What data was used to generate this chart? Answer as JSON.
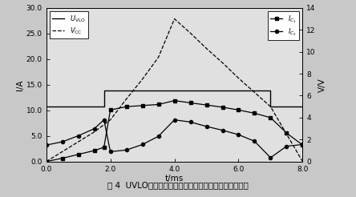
{
  "xlabel": "t/ms",
  "ylabel_left": "I/A",
  "ylabel_right": "V/V",
  "caption": "图 4  UVLO随及晶体管集电极电流随电源电压变化关系图",
  "xlim": [
    0.0,
    8.0
  ],
  "ylim_left": [
    0.0,
    30.0
  ],
  "ylim_right": [
    0,
    14
  ],
  "xticks": [
    0.0,
    2.0,
    4.0,
    6.0,
    8.0
  ],
  "yticks_left": [
    0.0,
    5.0,
    10.0,
    15.0,
    20.0,
    25.0,
    30.0
  ],
  "yticks_right": [
    0,
    2,
    4,
    6,
    8,
    10,
    12,
    14
  ],
  "uvlo_x": [
    0.0,
    1.8,
    1.8,
    7.0,
    7.0,
    8.0
  ],
  "uvlo_y": [
    5.0,
    5.0,
    6.5,
    6.5,
    5.0,
    5.0
  ],
  "vcc_x": [
    0.0,
    0.5,
    1.0,
    1.5,
    2.0,
    2.5,
    3.0,
    3.5,
    4.0,
    4.5,
    5.0,
    5.5,
    6.0,
    6.5,
    7.0,
    7.5,
    8.0
  ],
  "vcc_y": [
    0.0,
    0.9,
    1.8,
    2.7,
    3.8,
    5.7,
    7.5,
    9.5,
    13.0,
    11.7,
    10.3,
    9.0,
    7.6,
    6.3,
    5.0,
    2.5,
    0.0
  ],
  "ic1_x": [
    0.0,
    0.5,
    1.0,
    1.5,
    1.8,
    2.0,
    2.5,
    3.0,
    3.5,
    4.0,
    4.5,
    5.0,
    5.5,
    6.0,
    6.5,
    7.0,
    7.5,
    8.0
  ],
  "ic1_y": [
    0.0,
    0.3,
    0.65,
    1.0,
    1.3,
    4.7,
    5.0,
    5.1,
    5.2,
    5.55,
    5.35,
    5.15,
    4.95,
    4.7,
    4.4,
    4.0,
    2.6,
    1.5
  ],
  "ic2_x": [
    0.0,
    0.5,
    1.0,
    1.5,
    1.8,
    2.0,
    2.5,
    3.0,
    3.5,
    4.0,
    4.5,
    5.0,
    5.5,
    6.0,
    6.5,
    7.0,
    7.5,
    8.0
  ],
  "ic2_y": [
    1.5,
    1.8,
    2.35,
    3.0,
    3.8,
    0.9,
    1.05,
    1.55,
    2.3,
    3.8,
    3.6,
    3.2,
    2.85,
    2.45,
    1.85,
    0.35,
    1.4,
    1.55
  ],
  "background_color": "#d8d8d8",
  "plot_bg_color": "#e0e0e0"
}
